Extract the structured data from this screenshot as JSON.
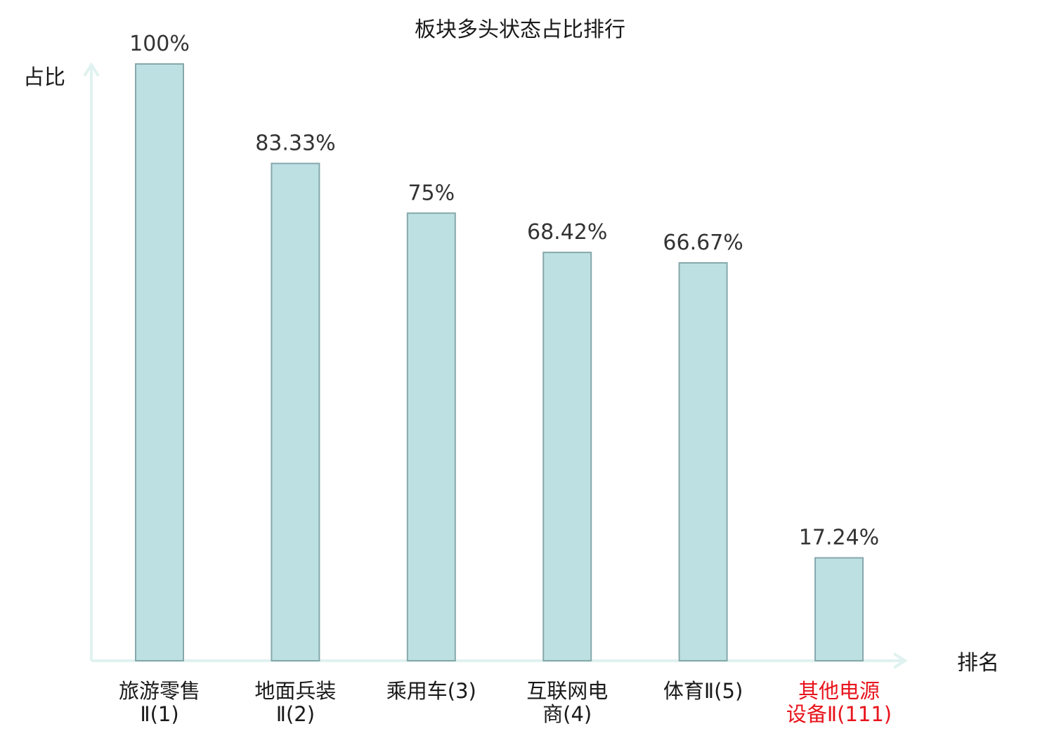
{
  "chart_data": {
    "type": "bar",
    "title": "板块多头状态占比排行",
    "ylabel": "占比",
    "xlabel": "排名",
    "categories": [
      [
        "旅游零售",
        "Ⅱ(1)"
      ],
      [
        "地面兵装",
        "Ⅱ(2)"
      ],
      [
        "乘用车(3)"
      ],
      [
        "互联网电",
        "商(4)"
      ],
      [
        "体育Ⅱ(5)"
      ],
      [
        "其他电源",
        "设备Ⅱ(111)"
      ]
    ],
    "values": [
      100,
      83.33,
      75,
      68.42,
      66.67,
      17.24
    ],
    "value_labels": [
      "100%",
      "83.33%",
      "75%",
      "68.42%",
      "66.67%",
      "17.24%"
    ],
    "highlight_index": 5,
    "ylim": [
      0,
      100
    ],
    "colors": {
      "bar_fill": "#bde0e3",
      "bar_stroke": "#86a8ab",
      "axis": "#e0f2ef",
      "highlight_text": "#e8141c"
    },
    "grid": false
  }
}
